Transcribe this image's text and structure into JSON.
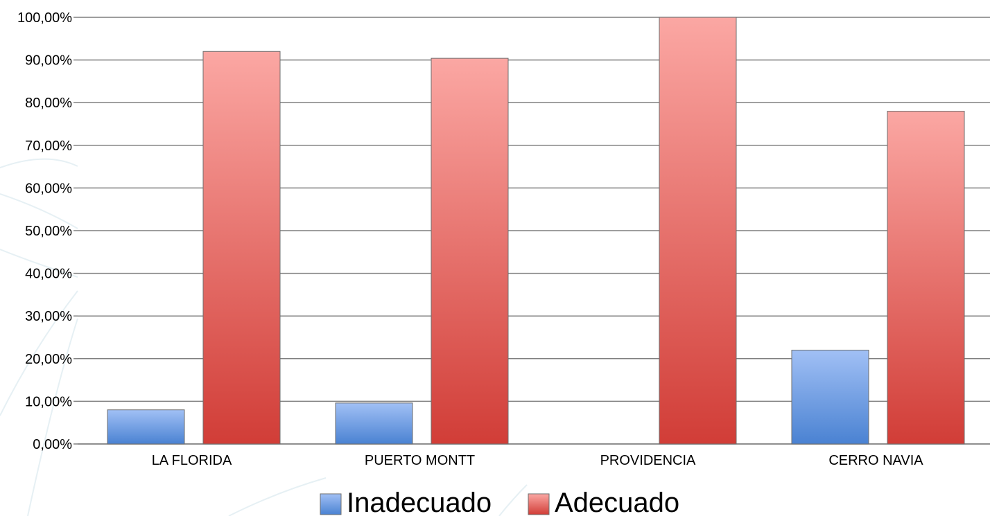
{
  "chart_data": {
    "type": "bar",
    "title": "",
    "xlabel": "",
    "ylabel": "",
    "categories": [
      "LA FLORIDA",
      "PUERTO MONTT",
      "PROVIDENCIA",
      "CERRO NAVIA"
    ],
    "series": [
      {
        "name": "Inadecuado",
        "values": [
          8,
          9.6,
          0,
          22
        ],
        "color": "#4f86d6"
      },
      {
        "name": "Adecuado",
        "values": [
          92,
          90.4,
          100,
          78
        ],
        "color": "#d2403a"
      }
    ],
    "ylim": [
      0,
      100
    ],
    "yticks": [
      "0,00%",
      "10,00%",
      "20,00%",
      "30,00%",
      "40,00%",
      "50,00%",
      "60,00%",
      "70,00%",
      "80,00%",
      "90,00%",
      "100,00%"
    ],
    "grid": true,
    "legend_position": "bottom-center",
    "colors": {
      "inadecuado_top": "#a1c0f5",
      "inadecuado_bottom": "#4a82d2",
      "adecuado_top": "#fba7a3",
      "adecuado_bottom": "#d13d37",
      "gridline": "#7f7f7f",
      "background_lines": "#e6f0f4"
    }
  }
}
